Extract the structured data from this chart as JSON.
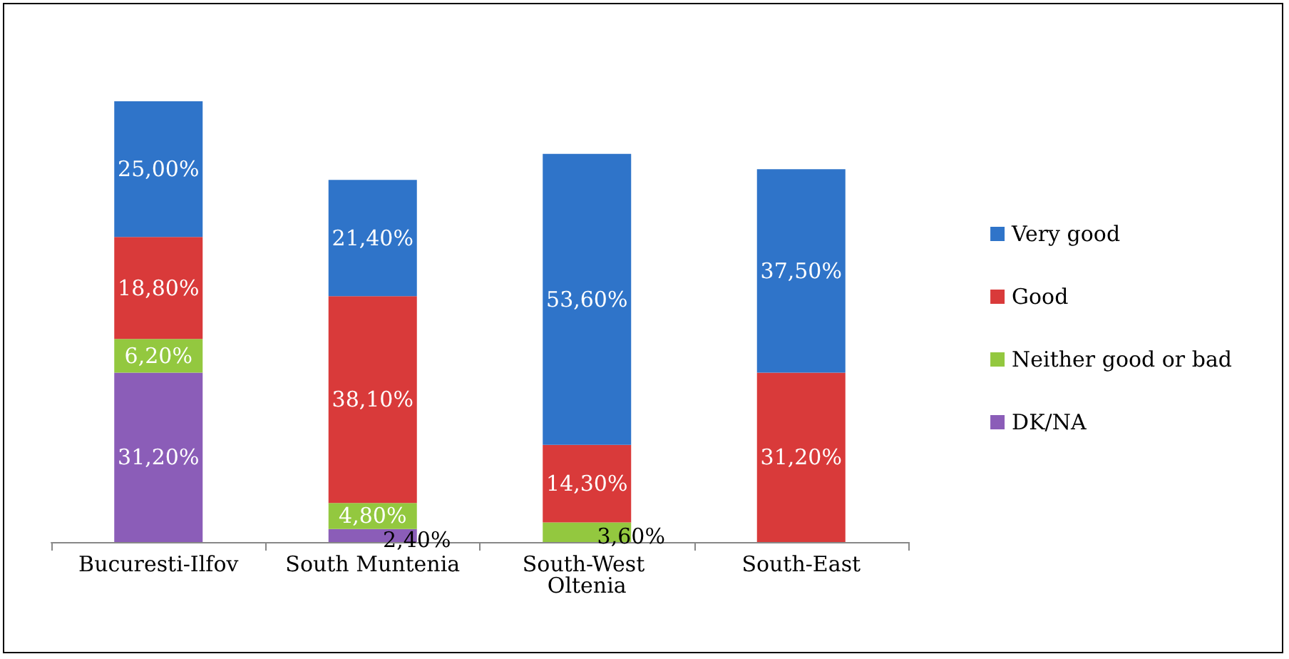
{
  "chart_data": {
    "type": "bar",
    "stacked": true,
    "categories": [
      "Bucuresti-Ilfov",
      "South Muntenia",
      "South-West Oltenia",
      "South-East"
    ],
    "series": [
      {
        "name": "DK/NA",
        "color": "#8b5db8",
        "values": [
          31.2,
          2.4,
          null,
          null
        ],
        "value_labels": [
          "31,20%",
          "2,40%",
          null,
          null
        ]
      },
      {
        "name": "Neither good or bad",
        "color": "#93c83f",
        "values": [
          6.2,
          4.8,
          3.6,
          null
        ],
        "value_labels": [
          "6,20%",
          "4,80%",
          "3,60%",
          null
        ]
      },
      {
        "name": "Good",
        "color": "#d93a3a",
        "values": [
          18.8,
          38.1,
          14.3,
          31.2
        ],
        "value_labels": [
          "18,80%",
          "38,10%",
          "14,30%",
          "31,20%"
        ]
      },
      {
        "name": "Very good",
        "color": "#2f74c9",
        "values": [
          25.0,
          21.4,
          53.6,
          37.5
        ],
        "value_labels": [
          "25,00%",
          "21,40%",
          "53,60%",
          "37,50%"
        ]
      }
    ],
    "legend": "right"
  }
}
